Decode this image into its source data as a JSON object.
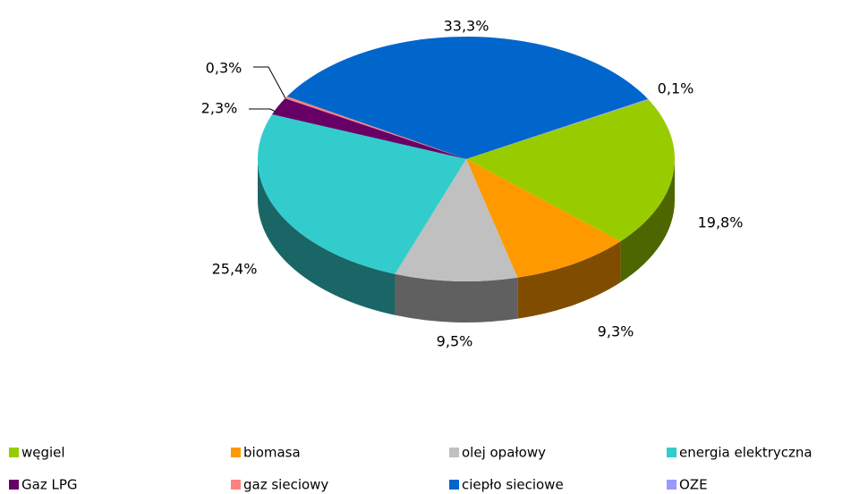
{
  "chart_data": {
    "type": "pie3d",
    "categories": [
      "węgiel",
      "biomasa",
      "olej opałowy",
      "energia elektryczna",
      "Gaz LPG",
      "gaz sieciowy",
      "ciepło sieciowe",
      "OZE"
    ],
    "values": [
      19.8,
      9.3,
      9.5,
      25.4,
      2.3,
      0.3,
      33.3,
      0.1
    ],
    "value_labels": [
      "19,8%",
      "9,3%",
      "9,5%",
      "25,4%",
      "2,3%",
      "0,3%",
      "33,3%",
      "0,1%"
    ],
    "colors": [
      "#99cc00",
      "#ff9900",
      "#c0c0c0",
      "#33cccc",
      "#660066",
      "#ff8080",
      "#0066cc",
      "#9999ff"
    ],
    "legend": "bottom"
  }
}
